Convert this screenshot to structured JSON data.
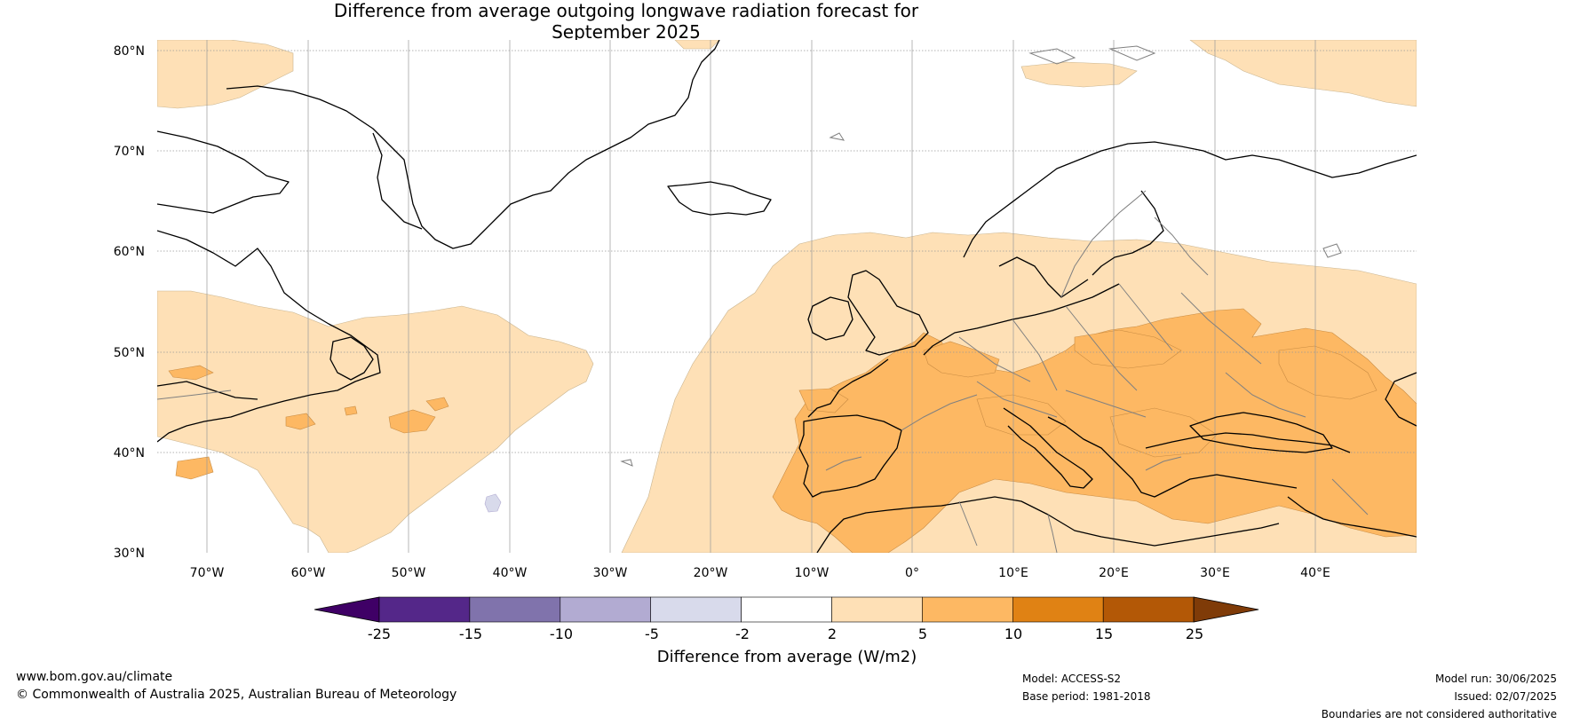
{
  "title": {
    "line1": "Difference from average outgoing longwave radiation forecast for",
    "line2": "September 2025"
  },
  "map": {
    "lat_labels": [
      "80°N",
      "70°N",
      "60°N",
      "50°N",
      "40°N",
      "30°N"
    ],
    "lon_labels": [
      "70°W",
      "60°W",
      "50°W",
      "40°W",
      "30°W",
      "20°W",
      "10°W",
      "0°",
      "10°E",
      "20°E",
      "30°E",
      "40°E"
    ],
    "extent": {
      "lon": [
        -75,
        50
      ],
      "lat": [
        30,
        81
      ]
    },
    "land_color": "#000000",
    "border_color": "#808080"
  },
  "colorbar": {
    "title": "Difference from average (W/m2)",
    "ticks": [
      "-25",
      "-15",
      "-10",
      "-5",
      "-2",
      "2",
      "5",
      "10",
      "15",
      "25"
    ],
    "bins": [
      {
        "range": "<-25",
        "color": "#3f0066"
      },
      {
        "range": "-25 to -15",
        "color": "#542789"
      },
      {
        "range": "-15 to -10",
        "color": "#8073ac"
      },
      {
        "range": "-10 to -5",
        "color": "#b2abd2"
      },
      {
        "range": "-5 to -2",
        "color": "#d8daeb"
      },
      {
        "range": "-2 to 2",
        "color": "#ffffff"
      },
      {
        "range": "2 to 5",
        "color": "#fee0b6"
      },
      {
        "range": "5 to 10",
        "color": "#fdb863"
      },
      {
        "range": "10 to 15",
        "color": "#e08214"
      },
      {
        "range": "15 to 25",
        "color": "#b35806"
      },
      {
        "range": ">25",
        "color": "#7f3b08"
      }
    ]
  },
  "footer": {
    "website": "www.bom.gov.au/climate",
    "copyright": "© Commonwealth of Australia 2025, Australian Bureau of Meteorology",
    "model": "Model: ACCESS-S2",
    "base_period": "Base period: 1981-2018",
    "model_run": "Model run: 30/06/2025",
    "issued": "Issued: 02/07/2025",
    "boundaries": "Boundaries are not considered authoritative"
  }
}
